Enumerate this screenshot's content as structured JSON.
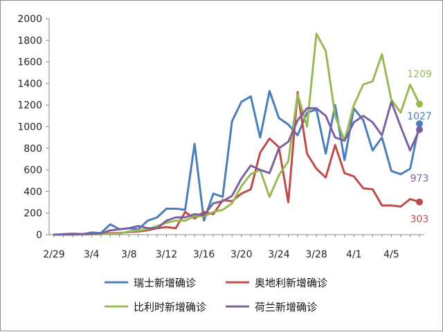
{
  "chart_data": {
    "type": "line",
    "title": "",
    "xlabel": "",
    "ylabel": "",
    "ylim": [
      0,
      2000
    ],
    "yticks": [
      0,
      200,
      400,
      600,
      800,
      1000,
      1200,
      1400,
      1600,
      1800,
      2000
    ],
    "grid": false,
    "legend_position": "bottom",
    "x": [
      "2/29",
      "3/1",
      "3/2",
      "3/3",
      "3/4",
      "3/5",
      "3/6",
      "3/7",
      "3/8",
      "3/9",
      "3/10",
      "3/11",
      "3/12",
      "3/13",
      "3/14",
      "3/15",
      "3/16",
      "3/17",
      "3/18",
      "3/19",
      "3/20",
      "3/21",
      "3/22",
      "3/23",
      "3/24",
      "3/25",
      "3/26",
      "3/27",
      "3/28",
      "3/29",
      "3/30",
      "3/31",
      "4/1",
      "4/2",
      "4/3",
      "4/4",
      "4/5",
      "4/6",
      "4/7",
      "4/8"
    ],
    "xtick_labels": [
      "2/29",
      "3/4",
      "3/8",
      "3/12",
      "3/16",
      "3/20",
      "3/24",
      "3/28",
      "4/1",
      "4/5"
    ],
    "series": [
      {
        "name": "瑞士新增确诊",
        "color": "#4a7ebb",
        "values": [
          0,
          5,
          10,
          5,
          20,
          15,
          95,
          50,
          60,
          50,
          130,
          160,
          240,
          240,
          230,
          840,
          130,
          380,
          350,
          1050,
          1230,
          1280,
          900,
          1330,
          1080,
          1020,
          920,
          1130,
          1160,
          750,
          1200,
          690,
          1170,
          1060,
          780,
          900,
          590,
          560,
          610,
          1027
        ],
        "end_label": "1027"
      },
      {
        "name": "奥地利新增确诊",
        "color": "#be4b48",
        "values": [
          0,
          0,
          2,
          3,
          5,
          10,
          15,
          15,
          25,
          30,
          40,
          60,
          70,
          60,
          210,
          150,
          210,
          190,
          320,
          310,
          380,
          420,
          760,
          890,
          810,
          300,
          1320,
          750,
          610,
          530,
          830,
          570,
          540,
          430,
          420,
          270,
          270,
          260,
          330,
          303
        ],
        "end_label": "303"
      },
      {
        "name": "比利时新增确诊",
        "color": "#98b954",
        "values": [
          0,
          0,
          1,
          2,
          3,
          5,
          10,
          10,
          30,
          40,
          50,
          80,
          110,
          130,
          130,
          170,
          170,
          210,
          230,
          290,
          450,
          560,
          600,
          350,
          550,
          680,
          1300,
          1000,
          1860,
          1700,
          1100,
          870,
          1200,
          1390,
          1420,
          1670,
          1250,
          1130,
          1390,
          1209
        ],
        "end_label": "1209"
      },
      {
        "name": "荷兰新增确诊",
        "color": "#7d60a0",
        "values": [
          0,
          1,
          2,
          5,
          7,
          10,
          40,
          50,
          60,
          80,
          60,
          60,
          130,
          160,
          160,
          190,
          180,
          290,
          310,
          360,
          520,
          640,
          600,
          570,
          800,
          860,
          1060,
          1170,
          1170,
          1100,
          900,
          870,
          1040,
          1100,
          1040,
          920,
          1230,
          1000,
          780,
          973
        ],
        "end_label": "973"
      }
    ]
  }
}
